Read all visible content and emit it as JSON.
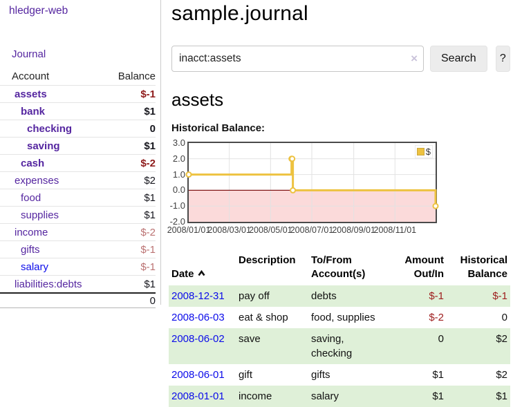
{
  "app": {
    "title": "hledger-web"
  },
  "sidebar": {
    "journal_link": "Journal",
    "table": {
      "account_header": "Account",
      "balance_header": "Balance",
      "accounts": [
        {
          "name": "assets",
          "indent": 1,
          "bold": true,
          "balance": "$-1"
        },
        {
          "name": "bank",
          "indent": 2,
          "bold": true,
          "balance": "$1"
        },
        {
          "name": "checking",
          "indent": 3,
          "bold": true,
          "balance": "0"
        },
        {
          "name": "saving",
          "indent": 3,
          "bold": true,
          "balance": "$1"
        },
        {
          "name": "cash",
          "indent": 2,
          "bold": true,
          "balance": "$-2"
        },
        {
          "name": "expenses",
          "indent": 1,
          "bold": false,
          "balance": "$2"
        },
        {
          "name": "food",
          "indent": 2,
          "bold": false,
          "balance": "$1"
        },
        {
          "name": "supplies",
          "indent": 2,
          "bold": false,
          "balance": "$1"
        },
        {
          "name": "income",
          "indent": 1,
          "bold": false,
          "balance": "$-2"
        },
        {
          "name": "gifts",
          "indent": 2,
          "bold": false,
          "balance": "$-1"
        },
        {
          "name": "salary",
          "indent": 2,
          "bold": false,
          "balance": "$-1",
          "blue": true
        },
        {
          "name": "liabilities:debts",
          "indent": 1,
          "bold": false,
          "balance": "$1"
        }
      ],
      "total": "0"
    }
  },
  "header": {
    "title": "sample.journal"
  },
  "search": {
    "value": "inacct:assets",
    "clear_icon": "×",
    "button_label": "Search",
    "help_label": "?"
  },
  "account_page": {
    "heading": "assets",
    "chart_label": "Historical Balance:"
  },
  "chart_data": {
    "type": "line",
    "title": "Historical Balance:",
    "series": [
      {
        "name": "$",
        "color": "#edc240",
        "step": true,
        "points": [
          [
            "2008/01/01",
            1
          ],
          [
            "2008/06/01",
            2
          ],
          [
            "2008/06/02",
            2
          ],
          [
            "2008/06/03",
            0
          ],
          [
            "2008/12/31",
            -1
          ]
        ]
      }
    ],
    "x_range": [
      "2008/01/01",
      "2008/12/31"
    ],
    "x_ticks": [
      "2008/01/01",
      "2008/03/01",
      "2008/05/01",
      "2008/07/01",
      "2008/09/01",
      "2008/11/01"
    ],
    "y_ticks": [
      "3.0",
      "2.0",
      "1.0",
      "0.0",
      "-1.0",
      "-2.0"
    ],
    "ylim": [
      -2,
      3
    ],
    "grid": true,
    "negative_region_color": "#fbdada",
    "zero_line_color": "#801515",
    "legend": {
      "label": "$",
      "position": "top-right"
    }
  },
  "register": {
    "columns": [
      {
        "label": "Date",
        "sortable": true
      },
      {
        "label": "Description"
      },
      {
        "label": "To/From\nAccount(s)"
      },
      {
        "label": "Amount\nOut/In",
        "align": "right"
      },
      {
        "label": "Historical\nBalance",
        "align": "right"
      }
    ],
    "rows": [
      {
        "date": "2008-12-31",
        "description": "pay off",
        "accounts": "debts",
        "amount": "$-1",
        "balance": "$-1"
      },
      {
        "date": "2008-06-03",
        "description": "eat & shop",
        "accounts": "food, supplies",
        "amount": "$-2",
        "balance": "0"
      },
      {
        "date": "2008-06-02",
        "description": "save",
        "accounts": "saving,\nchecking",
        "amount": "0",
        "balance": "$2"
      },
      {
        "date": "2008-06-01",
        "description": "gift",
        "accounts": "gifts",
        "amount": "$1",
        "balance": "$2"
      },
      {
        "date": "2008-01-01",
        "description": "income",
        "accounts": "salary",
        "amount": "$1",
        "balance": "$1"
      }
    ]
  },
  "colors": {
    "link_purple": "#5526a0",
    "link_blue": "#0b0bea",
    "negative_strong": "#8e1b1b",
    "negative_muted": "#bb7272",
    "table_negative": "#9d1c1c",
    "row_highlight_green": "#dff0d8",
    "chart_series_yellow": "#edc240",
    "chart_negative_region_pink": "#fbdada",
    "chart_zero_line_red": "#801515"
  }
}
